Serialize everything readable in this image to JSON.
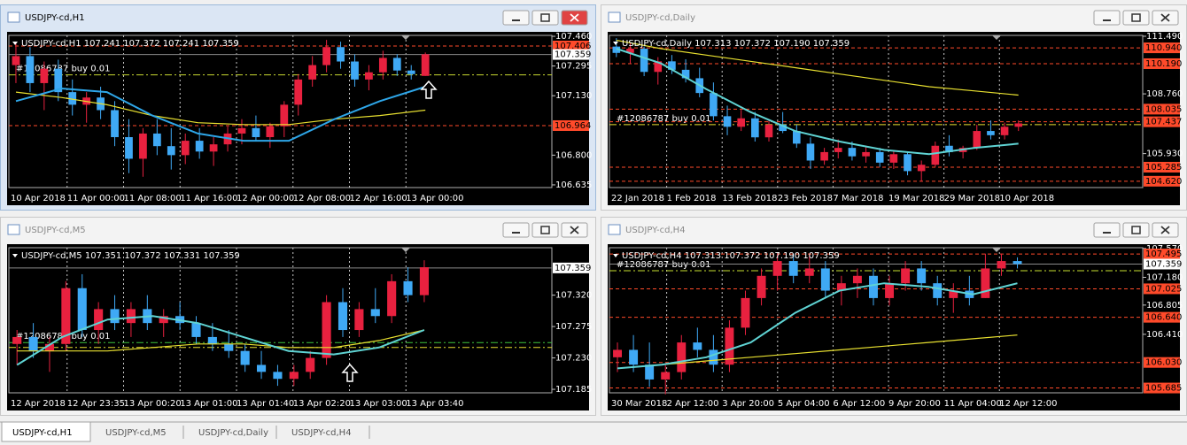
{
  "windows": [
    {
      "title": "USDJPY-cd,H1",
      "active": true,
      "info": "USDJPY-cd,H1  107.241 107.372 107.241 107.359",
      "order_label": "#12086787 buy 0.01",
      "ylim": [
        106.62,
        107.465
      ],
      "yticks": [
        {
          "value": 107.46,
          "label": "107.460"
        },
        {
          "value": 107.295,
          "label": "107.295"
        },
        {
          "value": 107.13,
          "label": "107.130"
        },
        {
          "value": 106.8,
          "label": "106.800"
        },
        {
          "value": 106.635,
          "label": "106.635"
        }
      ],
      "levels": [
        {
          "value": 107.406,
          "label": "107.406",
          "color": "#ff4a2a"
        },
        {
          "value": 107.359,
          "label": "107.359",
          "color": "#ffffff"
        },
        {
          "value": 106.964,
          "label": "106.964",
          "color": "#ff4a2a"
        }
      ],
      "order_lines": [
        {
          "value": 107.246,
          "color": "#c8d830"
        }
      ],
      "time_labels": [
        "10 Apr 2018",
        "11 Apr 00:00",
        "11 Apr 08:00",
        "11 Apr 16:00",
        "12 Apr 00:00",
        "12 Apr 08:00",
        "12 Apr 16:00",
        "13 Apr 00:00"
      ],
      "candles": [
        [
          107.3,
          107.42,
          107.2,
          107.35
        ],
        [
          107.35,
          107.4,
          107.15,
          107.2
        ],
        [
          107.2,
          107.32,
          107.05,
          107.28
        ],
        [
          107.28,
          107.33,
          107.1,
          107.15
        ],
        [
          107.15,
          107.22,
          107.02,
          107.08
        ],
        [
          107.08,
          107.15,
          106.98,
          107.12
        ],
        [
          107.12,
          107.18,
          107.0,
          107.05
        ],
        [
          107.05,
          107.1,
          106.85,
          106.9
        ],
        [
          106.9,
          107.0,
          106.7,
          106.78
        ],
        [
          106.78,
          106.95,
          106.68,
          106.92
        ],
        [
          106.92,
          107.0,
          106.8,
          106.85
        ],
        [
          106.85,
          106.95,
          106.72,
          106.8
        ],
        [
          106.8,
          106.92,
          106.75,
          106.88
        ],
        [
          106.88,
          106.95,
          106.78,
          106.82
        ],
        [
          106.82,
          106.9,
          106.74,
          106.86
        ],
        [
          106.86,
          106.96,
          106.82,
          106.92
        ],
        [
          106.92,
          107.0,
          106.86,
          106.95
        ],
        [
          106.95,
          107.02,
          106.88,
          106.9
        ],
        [
          106.9,
          106.98,
          106.84,
          106.96
        ],
        [
          106.96,
          107.1,
          106.9,
          107.08
        ],
        [
          107.08,
          107.25,
          107.02,
          107.22
        ],
        [
          107.22,
          107.35,
          107.18,
          107.3
        ],
        [
          107.3,
          107.44,
          107.26,
          107.4
        ],
        [
          107.4,
          107.43,
          107.28,
          107.32
        ],
        [
          107.32,
          107.36,
          107.18,
          107.22
        ],
        [
          107.22,
          107.3,
          107.16,
          107.26
        ],
        [
          107.26,
          107.38,
          107.22,
          107.34
        ],
        [
          107.34,
          107.36,
          107.24,
          107.27
        ],
        [
          107.27,
          107.3,
          107.22,
          107.25
        ],
        [
          107.24,
          107.37,
          107.24,
          107.36
        ]
      ],
      "ma": [
        {
          "color": "#e8e030",
          "values": [
            107.15,
            107.12,
            107.08,
            107.02,
            106.98,
            106.97,
            106.97,
            107.0,
            107.02,
            107.05
          ]
        },
        {
          "color": "#2ea6e8",
          "values": [
            107.1,
            107.17,
            107.15,
            107.02,
            106.92,
            106.88,
            106.88,
            107.0,
            107.1,
            107.18
          ]
        }
      ]
    },
    {
      "title": "USDJPY-cd,Daily",
      "active": false,
      "info": "USDJPY-cd,Daily  107.313 107.372 107.190 107.359",
      "order_label": "#12086787 buy 0.01",
      "ylim": [
        104.32,
        111.53
      ],
      "yticks": [
        {
          "value": 111.49,
          "label": "111.490"
        },
        {
          "value": 108.76,
          "label": "108.760"
        },
        {
          "value": 105.93,
          "label": "105.930"
        }
      ],
      "levels": [
        {
          "value": 110.94,
          "label": "110.940",
          "color": "#ff4a2a"
        },
        {
          "value": 110.19,
          "label": "110.190",
          "color": "#ff4a2a"
        },
        {
          "value": 108.035,
          "label": "108.035",
          "color": "#ff4a2a"
        },
        {
          "value": 107.437,
          "label": "107.437",
          "color": "#ff4a2a"
        },
        {
          "value": 105.285,
          "label": "105.285",
          "color": "#ff4a2a"
        },
        {
          "value": 104.62,
          "label": "104.620",
          "color": "#ff4a2a"
        }
      ],
      "order_lines": [
        {
          "value": 107.3,
          "color": "#e8e030"
        }
      ],
      "time_labels": [
        "22 Jan 2018",
        "1 Feb 2018",
        "13 Feb 2018",
        "23 Feb 2018",
        "7 Mar 2018",
        "19 Mar 2018",
        "29 Mar 2018",
        "10 Apr 2018"
      ],
      "candles": [
        [
          111.0,
          111.4,
          110.5,
          110.7
        ],
        [
          110.7,
          111.2,
          110.2,
          110.9
        ],
        [
          110.9,
          111.0,
          109.6,
          109.8
        ],
        [
          109.8,
          110.5,
          109.2,
          110.3
        ],
        [
          110.3,
          110.6,
          109.7,
          109.9
        ],
        [
          109.9,
          110.4,
          109.3,
          109.5
        ],
        [
          109.5,
          110.0,
          108.6,
          108.8
        ],
        [
          108.8,
          109.3,
          107.5,
          107.7
        ],
        [
          107.7,
          108.2,
          106.8,
          107.2
        ],
        [
          107.2,
          108.0,
          107.0,
          107.6
        ],
        [
          107.6,
          107.9,
          106.5,
          106.7
        ],
        [
          106.7,
          107.5,
          106.5,
          107.3
        ],
        [
          107.3,
          107.9,
          106.9,
          107.0
        ],
        [
          107.0,
          107.3,
          106.2,
          106.4
        ],
        [
          106.4,
          106.7,
          105.2,
          105.6
        ],
        [
          105.6,
          106.2,
          105.4,
          106.0
        ],
        [
          106.0,
          106.6,
          105.7,
          106.2
        ],
        [
          106.2,
          106.5,
          105.6,
          105.8
        ],
        [
          105.8,
          106.3,
          105.5,
          106.0
        ],
        [
          106.0,
          106.2,
          105.3,
          105.5
        ],
        [
          105.5,
          106.1,
          105.2,
          105.9
        ],
        [
          105.9,
          106.0,
          104.9,
          105.1
        ],
        [
          105.1,
          105.6,
          104.6,
          105.4
        ],
        [
          105.4,
          106.5,
          105.3,
          106.3
        ],
        [
          106.3,
          106.8,
          105.8,
          106.0
        ],
        [
          106.0,
          106.3,
          105.7,
          106.2
        ],
        [
          106.2,
          107.3,
          106.1,
          107.0
        ],
        [
          107.0,
          107.5,
          106.6,
          106.8
        ],
        [
          106.8,
          107.4,
          106.6,
          107.2
        ],
        [
          107.2,
          107.5,
          107.0,
          107.36
        ]
      ],
      "ma": [
        {
          "color": "#e8e030",
          "values": [
            111.3,
            110.9,
            110.6,
            110.3,
            110.0,
            109.7,
            109.4,
            109.1,
            108.9,
            108.7
          ]
        },
        {
          "color": "#5fd3d3",
          "values": [
            110.9,
            110.2,
            109.0,
            107.9,
            107.0,
            106.5,
            106.1,
            105.9,
            106.2,
            106.4
          ]
        }
      ]
    },
    {
      "title": "USDJPY-cd,M5",
      "active": false,
      "info": "USDJPY-cd,M5  107.351 107.372 107.331 107.359",
      "order_label": "#12086787 buy 0.01",
      "ylim": [
        107.18,
        107.388
      ],
      "yticks": [
        {
          "value": 107.32,
          "label": "107.320"
        },
        {
          "value": 107.275,
          "label": "107.275"
        },
        {
          "value": 107.23,
          "label": "107.230"
        },
        {
          "value": 107.185,
          "label": "107.185"
        }
      ],
      "levels": [
        {
          "value": 107.359,
          "label": "107.359",
          "color": "#ffffff"
        }
      ],
      "order_lines": [
        {
          "value": 107.252,
          "color": "#3ec43e"
        },
        {
          "value": 107.245,
          "color": "#e8e030"
        }
      ],
      "time_labels": [
        "12 Apr 2018",
        "12 Apr 23:35",
        "13 Apr 00:20",
        "13 Apr 01:00",
        "13 Apr 01:40",
        "13 Apr 02:20",
        "13 Apr 03:00",
        "13 Apr 03:40"
      ],
      "candles": [
        [
          107.25,
          107.27,
          107.22,
          107.26
        ],
        [
          107.26,
          107.28,
          107.23,
          107.24
        ],
        [
          107.24,
          107.26,
          107.21,
          107.25
        ],
        [
          107.25,
          107.34,
          107.24,
          107.33
        ],
        [
          107.33,
          107.35,
          107.26,
          107.27
        ],
        [
          107.27,
          107.31,
          107.25,
          107.3
        ],
        [
          107.3,
          107.32,
          107.27,
          107.28
        ],
        [
          107.28,
          107.31,
          107.26,
          107.3
        ],
        [
          107.3,
          107.32,
          107.27,
          107.28
        ],
        [
          107.28,
          107.3,
          107.26,
          107.29
        ],
        [
          107.29,
          107.31,
          107.27,
          107.28
        ],
        [
          107.28,
          107.29,
          107.25,
          107.26
        ],
        [
          107.26,
          107.28,
          107.24,
          107.25
        ],
        [
          107.25,
          107.27,
          107.23,
          107.24
        ],
        [
          107.24,
          107.25,
          107.21,
          107.22
        ],
        [
          107.22,
          107.24,
          107.2,
          107.21
        ],
        [
          107.21,
          107.22,
          107.19,
          107.2
        ],
        [
          107.2,
          107.22,
          107.19,
          107.21
        ],
        [
          107.21,
          107.24,
          107.2,
          107.23
        ],
        [
          107.23,
          107.32,
          107.22,
          107.31
        ],
        [
          107.31,
          107.33,
          107.26,
          107.27
        ],
        [
          107.27,
          107.31,
          107.26,
          107.3
        ],
        [
          107.3,
          107.33,
          107.28,
          107.29
        ],
        [
          107.29,
          107.35,
          107.28,
          107.34
        ],
        [
          107.34,
          107.36,
          107.31,
          107.32
        ],
        [
          107.32,
          107.37,
          107.31,
          107.36
        ]
      ],
      "ma": [
        {
          "color": "#e8e030",
          "values": [
            107.24,
            107.24,
            107.24,
            107.245,
            107.25,
            107.25,
            107.245,
            107.245,
            107.255,
            107.27
          ]
        },
        {
          "color": "#5fd3d3",
          "values": [
            107.22,
            107.26,
            107.285,
            107.29,
            107.28,
            107.26,
            107.24,
            107.235,
            107.245,
            107.27
          ]
        }
      ]
    },
    {
      "title": "USDJPY-cd,H4",
      "active": false,
      "info": "USDJPY-cd,H4  107.313 107.372 107.190 107.359",
      "order_label": "#12086787 buy 0.01",
      "ylim": [
        105.62,
        107.58
      ],
      "yticks": [
        {
          "value": 107.57,
          "label": "107.570"
        },
        {
          "value": 107.18,
          "label": "107.180"
        },
        {
          "value": 106.805,
          "label": "106.805"
        },
        {
          "value": 106.41,
          "label": "106.410"
        }
      ],
      "levels": [
        {
          "value": 107.495,
          "label": "107.495",
          "color": "#ff4a2a"
        },
        {
          "value": 107.359,
          "label": "107.359",
          "color": "#ffffff"
        },
        {
          "value": 107.025,
          "label": "107.025",
          "color": "#ff4a2a"
        },
        {
          "value": 106.64,
          "label": "106.640",
          "color": "#ff4a2a"
        },
        {
          "value": 106.03,
          "label": "106.030",
          "color": "#ff4a2a"
        },
        {
          "value": 105.685,
          "label": "105.685",
          "color": "#ff4a2a"
        }
      ],
      "order_lines": [
        {
          "value": 107.27,
          "color": "#c8e030"
        }
      ],
      "time_labels": [
        "30 Mar 2018",
        "2 Apr 12:00",
        "3 Apr 20:00",
        "5 Apr 04:00",
        "6 Apr 12:00",
        "9 Apr 20:00",
        "11 Apr 04:00",
        "12 Apr 12:00"
      ],
      "candles": [
        [
          106.1,
          106.3,
          105.9,
          106.2
        ],
        [
          106.2,
          106.4,
          105.9,
          106.0
        ],
        [
          106.0,
          106.3,
          105.7,
          105.8
        ],
        [
          105.8,
          106.0,
          105.6,
          105.9
        ],
        [
          105.9,
          106.4,
          105.8,
          106.3
        ],
        [
          106.3,
          106.5,
          106.1,
          106.2
        ],
        [
          106.2,
          106.4,
          105.9,
          106.0
        ],
        [
          106.0,
          106.6,
          105.9,
          106.5
        ],
        [
          106.5,
          107.0,
          106.4,
          106.9
        ],
        [
          106.9,
          107.3,
          106.8,
          107.2
        ],
        [
          107.2,
          107.5,
          107.0,
          107.4
        ],
        [
          107.4,
          107.5,
          107.1,
          107.2
        ],
        [
          107.2,
          107.5,
          107.1,
          107.3
        ],
        [
          107.3,
          107.4,
          106.9,
          107.0
        ],
        [
          107.0,
          107.2,
          106.8,
          107.1
        ],
        [
          107.1,
          107.3,
          106.9,
          107.2
        ],
        [
          107.2,
          107.3,
          106.8,
          106.9
        ],
        [
          106.9,
          107.2,
          106.8,
          107.1
        ],
        [
          107.1,
          107.4,
          107.0,
          107.3
        ],
        [
          107.3,
          107.4,
          107.0,
          107.1
        ],
        [
          107.1,
          107.2,
          106.8,
          106.9
        ],
        [
          106.9,
          107.1,
          106.7,
          107.0
        ],
        [
          107.0,
          107.2,
          106.8,
          106.9
        ],
        [
          106.9,
          107.5,
          106.9,
          107.3
        ],
        [
          107.3,
          107.5,
          107.2,
          107.4
        ],
        [
          107.4,
          107.45,
          107.3,
          107.36
        ]
      ],
      "ma": [
        {
          "color": "#e8e030",
          "values": [
            105.95,
            106.0,
            106.05,
            106.1,
            106.15,
            106.2,
            106.25,
            106.3,
            106.35,
            106.4
          ]
        },
        {
          "color": "#5fd3d3",
          "values": [
            105.95,
            106.0,
            106.1,
            106.3,
            106.7,
            107.0,
            107.1,
            107.05,
            106.95,
            107.1
          ]
        }
      ]
    }
  ],
  "tabs": [
    "USDJPY-cd,H1",
    "USDJPY-cd,M5",
    "USDJPY-cd,Daily",
    "USDJPY-cd,H4"
  ]
}
